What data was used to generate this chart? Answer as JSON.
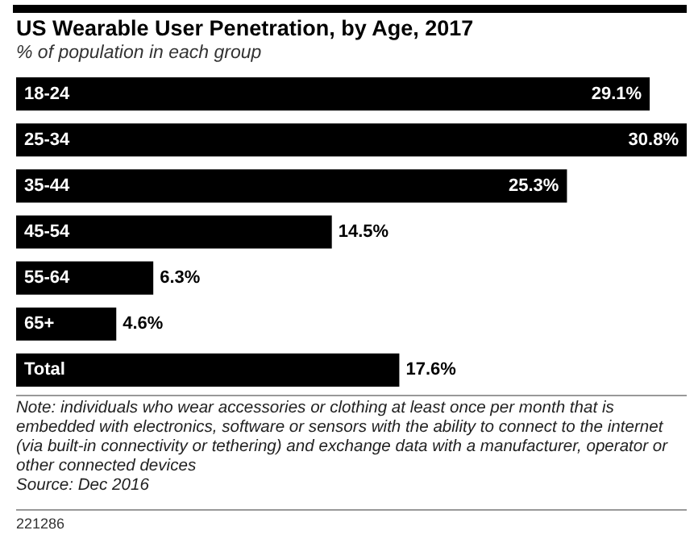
{
  "chart_data": {
    "type": "bar",
    "orientation": "horizontal",
    "title": "US Wearable User Penetration, by Age, 2017",
    "subtitle": "% of population in each group",
    "categories": [
      "18-24",
      "25-34",
      "35-44",
      "45-54",
      "55-64",
      "65+",
      "Total"
    ],
    "values": [
      29.1,
      30.8,
      25.3,
      14.5,
      6.3,
      4.6,
      17.6
    ],
    "value_labels": [
      "29.1%",
      "30.8%",
      "25.3%",
      "14.5%",
      "6.3%",
      "4.6%",
      "17.6%"
    ],
    "color": "#000000",
    "legend": false,
    "tick_labels": false,
    "annotations": [
      "Note: individuals who wear accessories or clothing at least once per month that is embedded with electronics, software or sensors with the ability to connect to the internet (via built-in connectivity or tethering) and exchange data with a manufacturer, operator or other connected devices",
      "Source: Dec 2016",
      "221286"
    ]
  }
}
